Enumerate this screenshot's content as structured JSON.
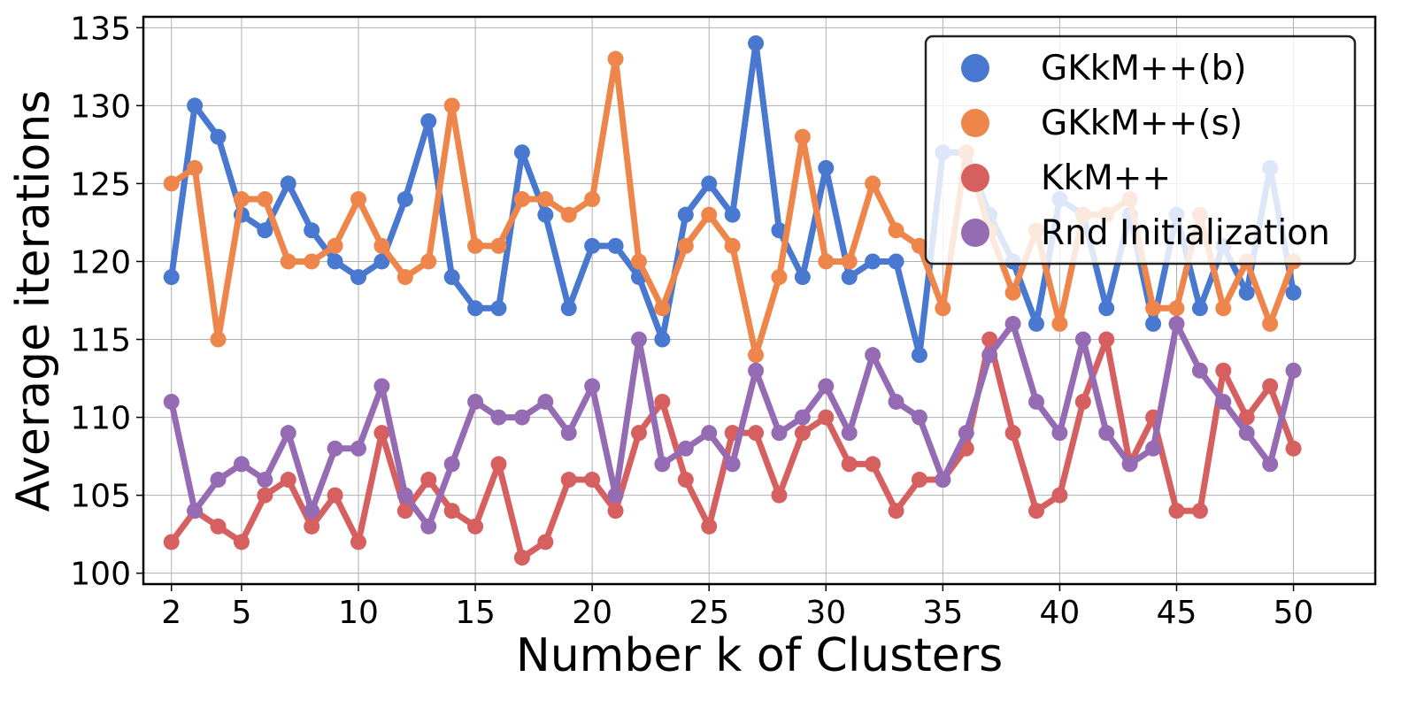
{
  "chart_data": {
    "type": "line",
    "title": "",
    "xlabel": "Number k of Clusters",
    "ylabel": "Average iterations",
    "xlim": [
      0.8,
      53.5
    ],
    "ylim": [
      99.3,
      135.7
    ],
    "grid": true,
    "legend_position": "top-right",
    "x": [
      2,
      3,
      4,
      5,
      6,
      7,
      8,
      9,
      10,
      11,
      12,
      13,
      14,
      15,
      16,
      17,
      18,
      19,
      20,
      21,
      22,
      23,
      24,
      25,
      26,
      27,
      28,
      29,
      30,
      31,
      32,
      33,
      34,
      35,
      36,
      37,
      38,
      39,
      40,
      41,
      42,
      43,
      44,
      45,
      46,
      47,
      48,
      49,
      50
    ],
    "xticks": [
      2,
      5,
      10,
      15,
      20,
      25,
      30,
      35,
      40,
      45,
      50
    ],
    "yticks": [
      100,
      105,
      110,
      115,
      120,
      125,
      130,
      135
    ],
    "series": [
      {
        "name": "GKkM++(b)",
        "color": "#4878cf",
        "values": [
          119,
          130,
          128,
          123,
          122,
          125,
          122,
          120,
          119,
          120,
          124,
          129,
          119,
          117,
          117,
          127,
          123,
          117,
          121,
          121,
          119,
          115,
          123,
          125,
          123,
          134,
          122,
          119,
          126,
          119,
          120,
          120,
          114,
          127,
          127,
          123,
          120,
          116,
          124,
          123,
          117,
          123,
          116,
          123,
          117,
          121,
          118,
          126,
          118
        ]
      },
      {
        "name": "GKkM++(s)",
        "color": "#ee854a",
        "values": [
          125,
          126,
          115,
          124,
          124,
          120,
          120,
          121,
          124,
          121,
          119,
          120,
          130,
          121,
          121,
          124,
          124,
          123,
          124,
          133,
          120,
          117,
          121,
          123,
          121,
          114,
          119,
          128,
          120,
          120,
          125,
          122,
          121,
          117,
          127,
          122,
          118,
          122,
          116,
          123,
          123,
          124,
          117,
          117,
          123,
          117,
          120,
          116,
          120
        ]
      },
      {
        "name": "KkM++",
        "color": "#d65f5f",
        "values": [
          102,
          104,
          103,
          102,
          105,
          106,
          103,
          105,
          102,
          109,
          104,
          106,
          104,
          103,
          107,
          101,
          102,
          106,
          106,
          104,
          109,
          111,
          106,
          103,
          109,
          109,
          105,
          109,
          110,
          107,
          107,
          104,
          106,
          106,
          108,
          115,
          109,
          104,
          105,
          111,
          115,
          107,
          110,
          104,
          104,
          113,
          110,
          112,
          108
        ]
      },
      {
        "name": "Rnd Initialization",
        "color": "#956cb4",
        "values": [
          111,
          104,
          106,
          107,
          106,
          109,
          104,
          108,
          108,
          112,
          105,
          103,
          107,
          111,
          110,
          110,
          111,
          109,
          112,
          105,
          115,
          107,
          108,
          109,
          107,
          113,
          109,
          110,
          112,
          109,
          114,
          111,
          110,
          106,
          109,
          114,
          116,
          111,
          109,
          115,
          109,
          107,
          108,
          116,
          113,
          111,
          109,
          107,
          113
        ]
      }
    ]
  }
}
